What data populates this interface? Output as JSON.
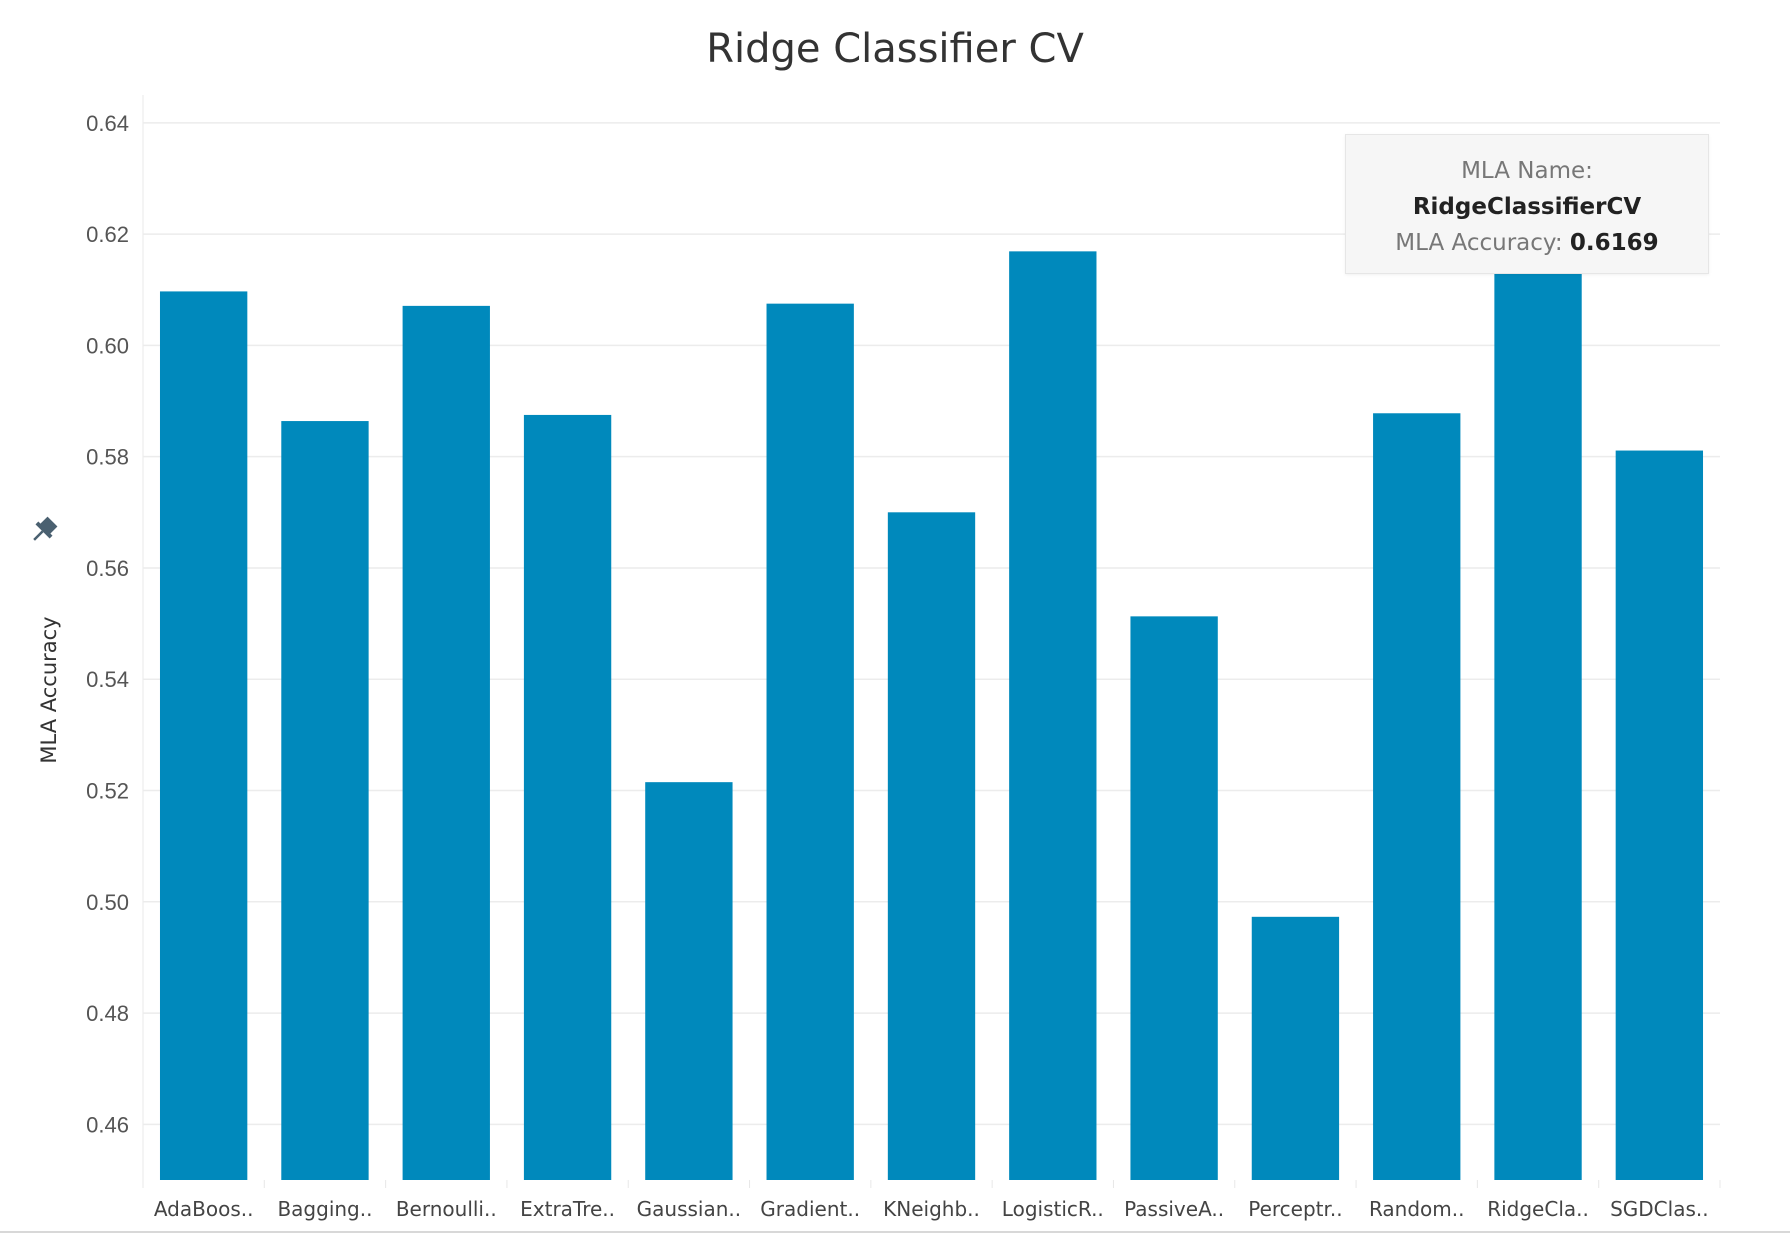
{
  "chart_data": {
    "type": "bar",
    "title": "Ridge Classifier CV",
    "xlabel": "",
    "ylabel": "MLA Accuracy",
    "ylim": [
      0.45,
      0.645
    ],
    "yticks": [
      "0.46",
      "0.48",
      "0.50",
      "0.52",
      "0.54",
      "0.56",
      "0.58",
      "0.60",
      "0.62",
      "0.64"
    ],
    "grid": true,
    "bar_color": "#0089bc",
    "categories": [
      "AdaBoos..",
      "Bagging..",
      "Bernoulli..",
      "ExtraTre..",
      "Gaussian..",
      "Gradient..",
      "KNeighb..",
      "LogisticR..",
      "PassiveA..",
      "Perceptr..",
      "Random..",
      "RidgeCla..",
      "SGDClas.."
    ],
    "values": [
      0.6097,
      0.5864,
      0.6071,
      0.5875,
      0.5215,
      0.6075,
      0.57,
      0.6169,
      0.5513,
      0.4973,
      0.5878,
      0.6169,
      0.5811
    ]
  },
  "tooltip": {
    "name_label": "MLA Name:",
    "name_value": "RidgeClassifierCV",
    "accuracy_label": "MLA Accuracy:",
    "accuracy_value": "0.6169"
  },
  "pin_icon": "pin-icon"
}
